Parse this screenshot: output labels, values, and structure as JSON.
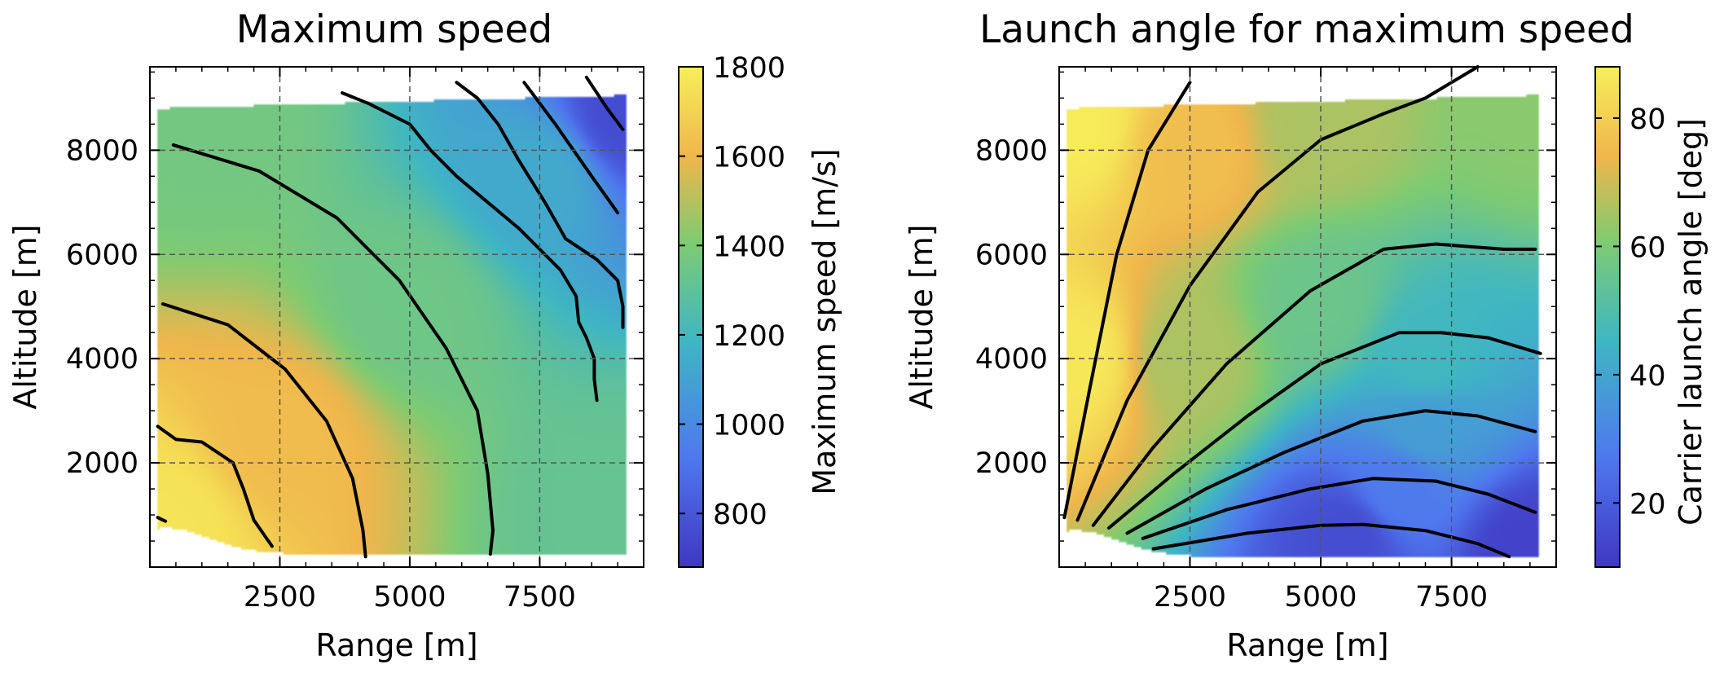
{
  "chart_data": [
    {
      "type": "heatmap",
      "title": "Maximum speed",
      "xlabel": "Range [m]",
      "ylabel": "Altitude [m]",
      "xlim": [
        0,
        9500
      ],
      "ylim": [
        0,
        9600
      ],
      "xticks": [
        2500,
        5000,
        7500
      ],
      "yticks": [
        2000,
        4000,
        6000,
        8000
      ],
      "grid": true,
      "colorbar": {
        "label": "Maximum speed [m/s]",
        "range": [
          680,
          1800
        ],
        "ticks": [
          800,
          1000,
          1200,
          1400,
          1600,
          1800
        ]
      },
      "field_anchors": [
        {
          "x": 300,
          "y": 800,
          "value": 1760
        },
        {
          "x": 2500,
          "y": 2500,
          "value": 1620
        },
        {
          "x": 5000,
          "y": 5000,
          "value": 1350
        },
        {
          "x": 1000,
          "y": 8500,
          "value": 1370
        },
        {
          "x": 9000,
          "y": 1000,
          "value": 1320
        },
        {
          "x": 7500,
          "y": 7500,
          "value": 1130
        },
        {
          "x": 9200,
          "y": 8700,
          "value": 760
        }
      ],
      "contours": [
        {
          "points": [
            [
              150,
              950
            ],
            [
              300,
              880
            ]
          ]
        },
        {
          "points": [
            [
              150,
              2700
            ],
            [
              500,
              2450
            ],
            [
              1000,
              2400
            ],
            [
              1600,
              2000
            ],
            [
              1800,
              1500
            ],
            [
              2000,
              900
            ],
            [
              2350,
              400
            ]
          ]
        },
        {
          "points": [
            [
              250,
              5050
            ],
            [
              1500,
              4650
            ],
            [
              2600,
              3800
            ],
            [
              3400,
              2800
            ],
            [
              3900,
              1700
            ],
            [
              4100,
              700
            ],
            [
              4150,
              200
            ]
          ]
        },
        {
          "points": [
            [
              450,
              8100
            ],
            [
              2100,
              7600
            ],
            [
              3600,
              6700
            ],
            [
              4800,
              5500
            ],
            [
              5700,
              4200
            ],
            [
              6300,
              3000
            ],
            [
              6500,
              1800
            ],
            [
              6600,
              700
            ],
            [
              6550,
              250
            ]
          ]
        },
        {
          "points": [
            [
              3700,
              9100
            ],
            [
              4200,
              8900
            ],
            [
              5000,
              8500
            ],
            [
              5400,
              8000
            ],
            [
              5900,
              7500
            ],
            [
              6500,
              7000
            ],
            [
              7100,
              6500
            ],
            [
              7500,
              6100
            ],
            [
              7900,
              5700
            ],
            [
              8200,
              5200
            ],
            [
              8250,
              4700
            ],
            [
              8400,
              4400
            ],
            [
              8550,
              4000
            ],
            [
              8550,
              3600
            ],
            [
              8600,
              3200
            ]
          ]
        },
        {
          "points": [
            [
              5900,
              9300
            ],
            [
              6300,
              9000
            ],
            [
              6700,
              8500
            ],
            [
              7100,
              7800
            ],
            [
              7600,
              7000
            ],
            [
              8000,
              6300
            ],
            [
              8600,
              5900
            ],
            [
              9000,
              5500
            ],
            [
              9100,
              5000
            ],
            [
              9100,
              4600
            ]
          ]
        },
        {
          "points": [
            [
              7200,
              9300
            ],
            [
              7800,
              8500
            ],
            [
              8500,
              7500
            ],
            [
              9000,
              6800
            ]
          ]
        },
        {
          "points": [
            [
              8400,
              9400
            ],
            [
              8800,
              8800
            ],
            [
              9100,
              8400
            ]
          ]
        }
      ]
    },
    {
      "type": "heatmap",
      "title": "Launch angle for maximum speed",
      "xlabel": "Range [m]",
      "ylabel": "Altitude [m]",
      "xlim": [
        0,
        9500
      ],
      "ylim": [
        0,
        9600
      ],
      "xticks": [
        2500,
        5000,
        7500
      ],
      "yticks": [
        2000,
        4000,
        6000,
        8000
      ],
      "grid": true,
      "colorbar": {
        "label": "Carrier launch angle [deg]",
        "range": [
          10,
          88
        ],
        "ticks": [
          20,
          40,
          60,
          80
        ]
      },
      "field_anchors": [
        {
          "x": 300,
          "y": 8500,
          "value": 87
        },
        {
          "x": 300,
          "y": 4000,
          "value": 86
        },
        {
          "x": 2500,
          "y": 8000,
          "value": 76
        },
        {
          "x": 5000,
          "y": 8500,
          "value": 66
        },
        {
          "x": 9000,
          "y": 8800,
          "value": 62
        },
        {
          "x": 2500,
          "y": 4000,
          "value": 66
        },
        {
          "x": 5000,
          "y": 5000,
          "value": 56
        },
        {
          "x": 7000,
          "y": 4000,
          "value": 46
        },
        {
          "x": 7000,
          "y": 2700,
          "value": 38
        },
        {
          "x": 6500,
          "y": 1500,
          "value": 28
        },
        {
          "x": 5500,
          "y": 600,
          "value": 16
        },
        {
          "x": 9000,
          "y": 300,
          "value": 13
        }
      ],
      "contours": [
        {
          "points": [
            [
              100,
              950
            ],
            [
              600,
              3500
            ],
            [
              1100,
              6000
            ],
            [
              1700,
              8000
            ],
            [
              2500,
              9300
            ]
          ]
        },
        {
          "points": [
            [
              350,
              900
            ],
            [
              1300,
              3200
            ],
            [
              2500,
              5400
            ],
            [
              3800,
              7200
            ],
            [
              5000,
              8200
            ],
            [
              6200,
              8700
            ],
            [
              7000,
              9000
            ],
            [
              8000,
              9600
            ]
          ]
        },
        {
          "points": [
            [
              650,
              800
            ],
            [
              1800,
              2300
            ],
            [
              3200,
              3900
            ],
            [
              4800,
              5300
            ],
            [
              6200,
              6100
            ],
            [
              7200,
              6200
            ],
            [
              8500,
              6100
            ],
            [
              9100,
              6100
            ]
          ]
        },
        {
          "points": [
            [
              950,
              750
            ],
            [
              2200,
              1800
            ],
            [
              3600,
              2900
            ],
            [
              5000,
              3900
            ],
            [
              6500,
              4500
            ],
            [
              7300,
              4500
            ],
            [
              8200,
              4400
            ],
            [
              9200,
              4100
            ]
          ]
        },
        {
          "points": [
            [
              1300,
              650
            ],
            [
              2800,
              1500
            ],
            [
              4300,
              2200
            ],
            [
              5800,
              2800
            ],
            [
              7000,
              3000
            ],
            [
              8000,
              2900
            ],
            [
              9100,
              2600
            ]
          ]
        },
        {
          "points": [
            [
              1600,
              550
            ],
            [
              3200,
              1100
            ],
            [
              4800,
              1500
            ],
            [
              6000,
              1700
            ],
            [
              7200,
              1650
            ],
            [
              8200,
              1400
            ],
            [
              9100,
              1050
            ]
          ]
        },
        {
          "points": [
            [
              1800,
              350
            ],
            [
              3600,
              650
            ],
            [
              5000,
              800
            ],
            [
              5800,
              820
            ],
            [
              7000,
              700
            ],
            [
              8000,
              450
            ],
            [
              8600,
              200
            ]
          ]
        }
      ]
    }
  ]
}
